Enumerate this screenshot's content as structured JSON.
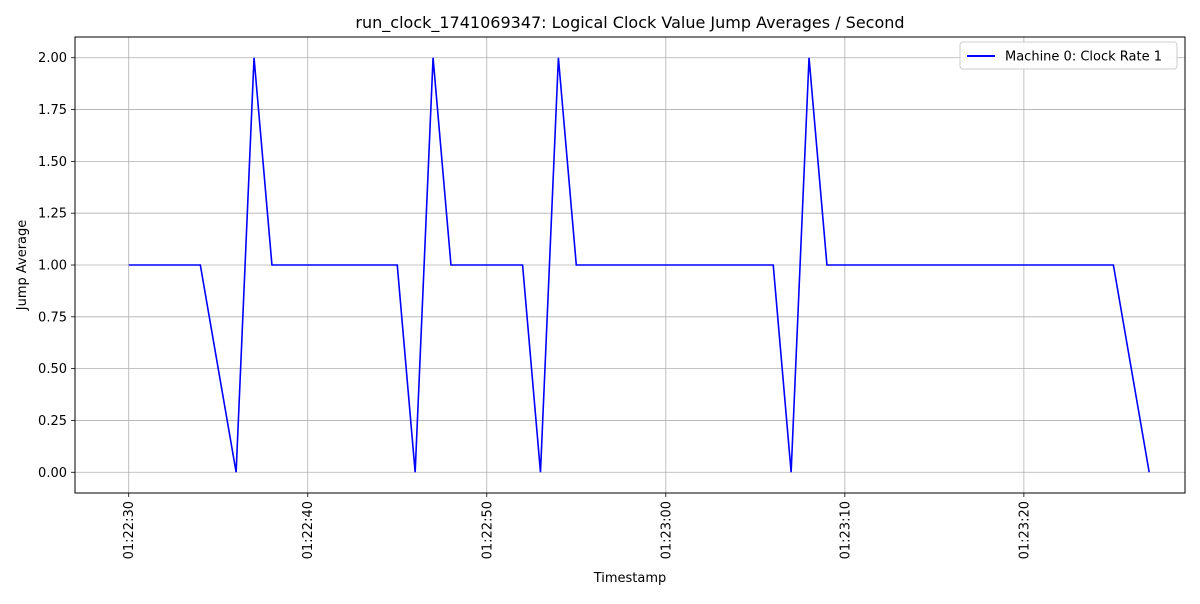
{
  "chart_data": {
    "type": "line",
    "title": "run_clock_1741069347: Logical Clock Value Jump Averages / Second",
    "xlabel": "Timestamp",
    "ylabel": "Jump Average",
    "x_ticks": [
      "01:22:30",
      "01:22:40",
      "01:22:50",
      "01:23:00",
      "01:23:10",
      "01:23:20"
    ],
    "y_ticks": [
      "0.00",
      "0.25",
      "0.50",
      "0.75",
      "1.00",
      "1.25",
      "1.50",
      "1.75",
      "2.00"
    ],
    "xlim": [
      "01:22:27",
      "01:23:29"
    ],
    "ylim": [
      -0.1,
      2.1
    ],
    "grid": true,
    "legend_position": "top-right",
    "series": [
      {
        "name": "Machine 0: Clock Rate 1",
        "color": "#0000ff",
        "points": [
          {
            "x": "01:22:30",
            "y": 1
          },
          {
            "x": "01:22:34",
            "y": 1
          },
          {
            "x": "01:22:36",
            "y": 0
          },
          {
            "x": "01:22:37",
            "y": 2
          },
          {
            "x": "01:22:38",
            "y": 1
          },
          {
            "x": "01:22:45",
            "y": 1
          },
          {
            "x": "01:22:46",
            "y": 0
          },
          {
            "x": "01:22:47",
            "y": 2
          },
          {
            "x": "01:22:48",
            "y": 1
          },
          {
            "x": "01:22:52",
            "y": 1
          },
          {
            "x": "01:22:53",
            "y": 0
          },
          {
            "x": "01:22:54",
            "y": 2
          },
          {
            "x": "01:22:55",
            "y": 1
          },
          {
            "x": "01:23:06",
            "y": 1
          },
          {
            "x": "01:23:07",
            "y": 0
          },
          {
            "x": "01:23:08",
            "y": 2
          },
          {
            "x": "01:23:09",
            "y": 1
          },
          {
            "x": "01:23:25",
            "y": 1
          },
          {
            "x": "01:23:27",
            "y": 0
          }
        ]
      }
    ]
  }
}
